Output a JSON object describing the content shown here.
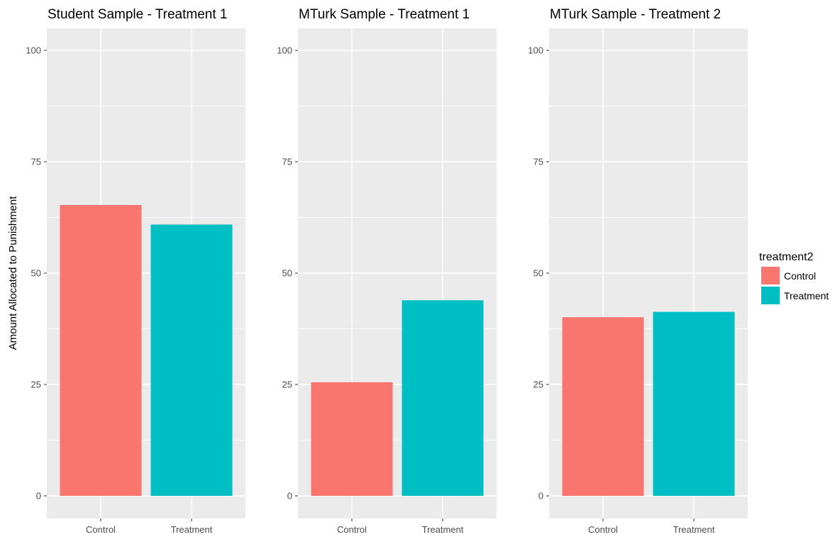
{
  "chart_data": [
    {
      "type": "bar",
      "title": "Student Sample - Treatment 1",
      "categories": [
        "Control",
        "Treatment"
      ],
      "values": [
        65.3,
        60.9
      ],
      "ylabel": "Amount Allocated to Punishment",
      "ylim": [
        0,
        100
      ],
      "yticks": [
        "0",
        "25",
        "50",
        "75",
        "100"
      ],
      "grid": true
    },
    {
      "type": "bar",
      "title": "MTurk Sample - Treatment 1",
      "categories": [
        "Control",
        "Treatment"
      ],
      "values": [
        25.5,
        43.9
      ],
      "ylabel": "",
      "ylim": [
        0,
        100
      ],
      "yticks": [
        "0",
        "25",
        "50",
        "75",
        "100"
      ],
      "grid": true
    },
    {
      "type": "bar",
      "title": "MTurk Sample - Treatment 2",
      "categories": [
        "Control",
        "Treatment"
      ],
      "values": [
        40.1,
        41.3
      ],
      "ylabel": "",
      "ylim": [
        0,
        100
      ],
      "yticks": [
        "0",
        "25",
        "50",
        "75",
        "100"
      ],
      "grid": true
    }
  ],
  "legend": {
    "title": "treatment2",
    "placement": "right",
    "items": [
      {
        "label": "Control",
        "color": "#F8766D"
      },
      {
        "label": "Treatment",
        "color": "#00BFC4"
      }
    ]
  },
  "colors": {
    "panel_background": "#EBEBEB",
    "grid_line": "#FFFFFF"
  }
}
